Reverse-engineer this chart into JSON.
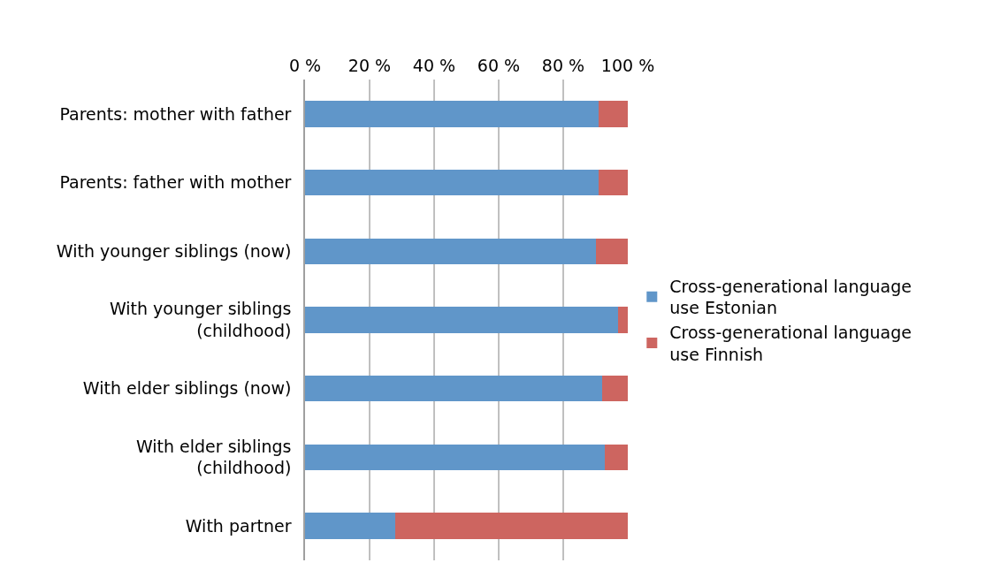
{
  "chart_data": {
    "type": "bar",
    "orientation": "horizontal",
    "stacked": true,
    "categories": [
      "Parents: mother with father",
      "Parents: father with mother",
      "With younger siblings (now)",
      "With younger siblings (childhood)",
      "With elder siblings (now)",
      "With elder siblings (childhood)",
      "With partner"
    ],
    "series": [
      {
        "name": "Cross-generational language use Estonian",
        "color": "#6096c9",
        "values": [
          91,
          91,
          90,
          97,
          92,
          93,
          28
        ]
      },
      {
        "name": "Cross-generational language use Finnish",
        "color": "#cd6560",
        "values": [
          9,
          9,
          10,
          3,
          8,
          7,
          72
        ]
      }
    ],
    "xlim": [
      0,
      100
    ],
    "xticks": [
      {
        "value": 0,
        "label": "0 %"
      },
      {
        "value": 20,
        "label": "20 %"
      },
      {
        "value": 40,
        "label": "40 %"
      },
      {
        "value": 60,
        "label": "60 %"
      },
      {
        "value": 80,
        "label": "80 %"
      },
      {
        "value": 100,
        "label": "100 %"
      }
    ],
    "grid": "x",
    "legend": "right"
  }
}
